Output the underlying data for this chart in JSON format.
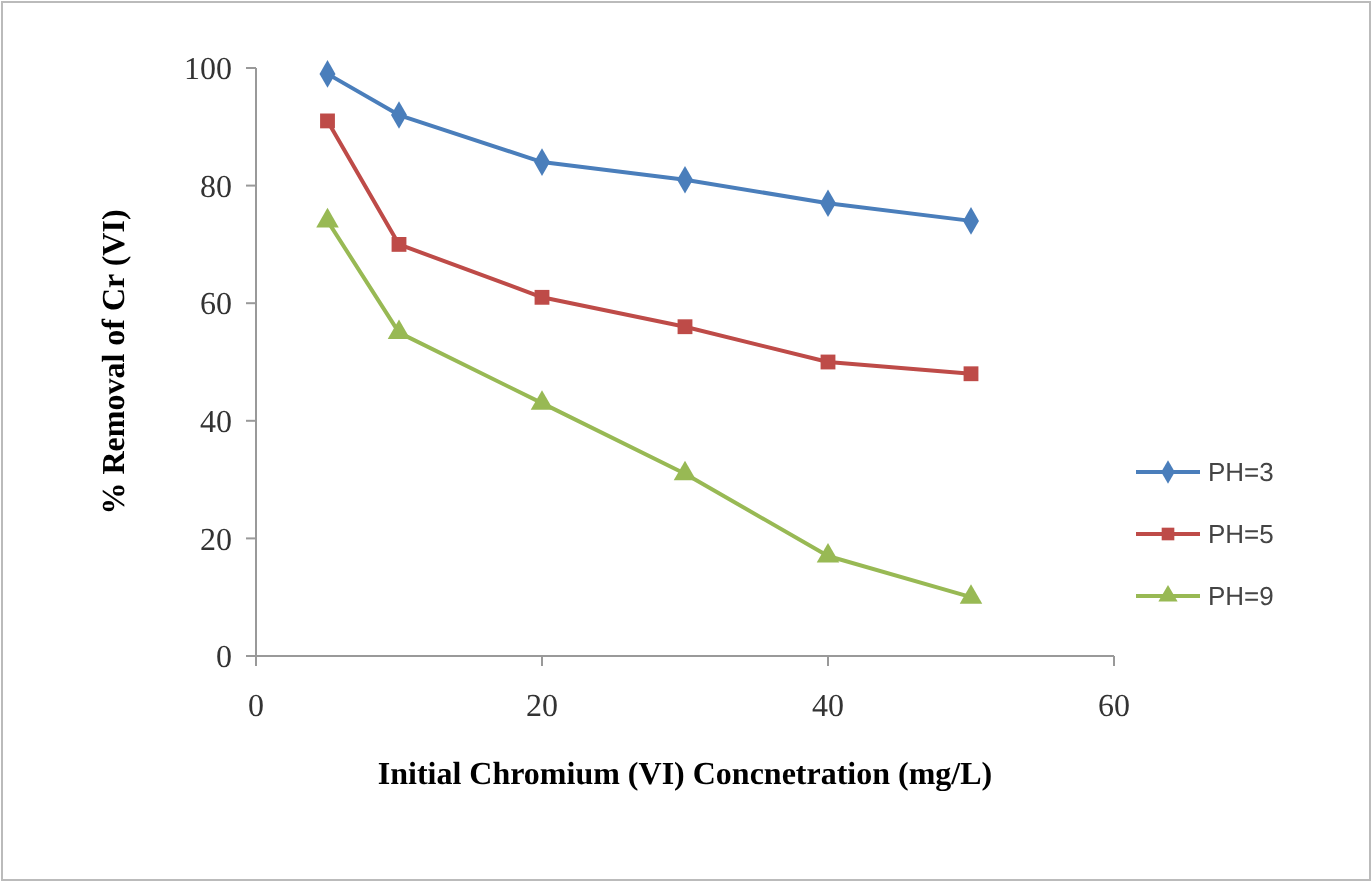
{
  "chart_data": {
    "type": "line",
    "xlabel": "Initial Chromium (VI) Concnetration (mg/L)",
    "ylabel": "% Removal of Cr (VI)",
    "x": [
      5,
      10,
      20,
      30,
      40,
      50
    ],
    "series": [
      {
        "name": "PH=3",
        "color": "#4a7ebb",
        "marker": "diamond",
        "values": [
          99,
          92,
          84,
          81,
          77,
          74
        ]
      },
      {
        "name": "PH=5",
        "color": "#be4b48",
        "marker": "square",
        "values": [
          91,
          70,
          61,
          56,
          50,
          48
        ]
      },
      {
        "name": "PH=9",
        "color": "#98b954",
        "marker": "triangle",
        "values": [
          74,
          55,
          43,
          31,
          17,
          10
        ]
      }
    ],
    "xlim": [
      0,
      60
    ],
    "xticks": [
      0,
      20,
      40,
      60
    ],
    "ylim": [
      0,
      100
    ],
    "yticks": [
      0,
      20,
      40,
      60,
      80,
      100
    ],
    "legend": "right",
    "grid": false
  }
}
